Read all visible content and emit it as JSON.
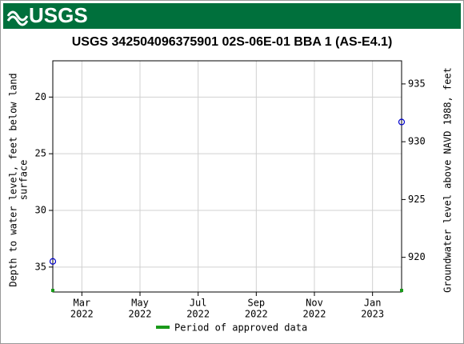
{
  "header": {
    "logo": "USGS"
  },
  "chart_data": {
    "type": "scatter",
    "title": "USGS 342504096375901 02S-06E-01 BBA 1 (AS-E4.1)",
    "ylabel": [
      "Depth to water level, feet below land",
      "surface"
    ],
    "y2label": "Groundwater level above NAVD 1988, feet",
    "xlim": [
      "2022-02",
      "2023-02"
    ],
    "xticks": [
      {
        "value": "2022-03",
        "label": "Mar",
        "year": "2022"
      },
      {
        "value": "2022-05",
        "label": "May",
        "year": "2022"
      },
      {
        "value": "2022-07",
        "label": "Jul",
        "year": "2022"
      },
      {
        "value": "2022-09",
        "label": "Sep",
        "year": "2022"
      },
      {
        "value": "2022-11",
        "label": "Nov",
        "year": "2022"
      },
      {
        "value": "2023-01",
        "label": "Jan",
        "year": "2023"
      }
    ],
    "ylim": [
      16.8,
      37.2
    ],
    "yticks": [
      20,
      25,
      30,
      35
    ],
    "yinverted": true,
    "y2lim": [
      917,
      937
    ],
    "y2ticks": [
      920,
      925,
      930,
      935
    ],
    "grid": true,
    "series": [
      {
        "name": "Period of approved data",
        "color": "#1a9a1a",
        "marker_color": "#0000cc",
        "x": [
          "2022-02",
          "2023-02"
        ],
        "values": [
          34.5,
          22.2
        ]
      }
    ]
  }
}
